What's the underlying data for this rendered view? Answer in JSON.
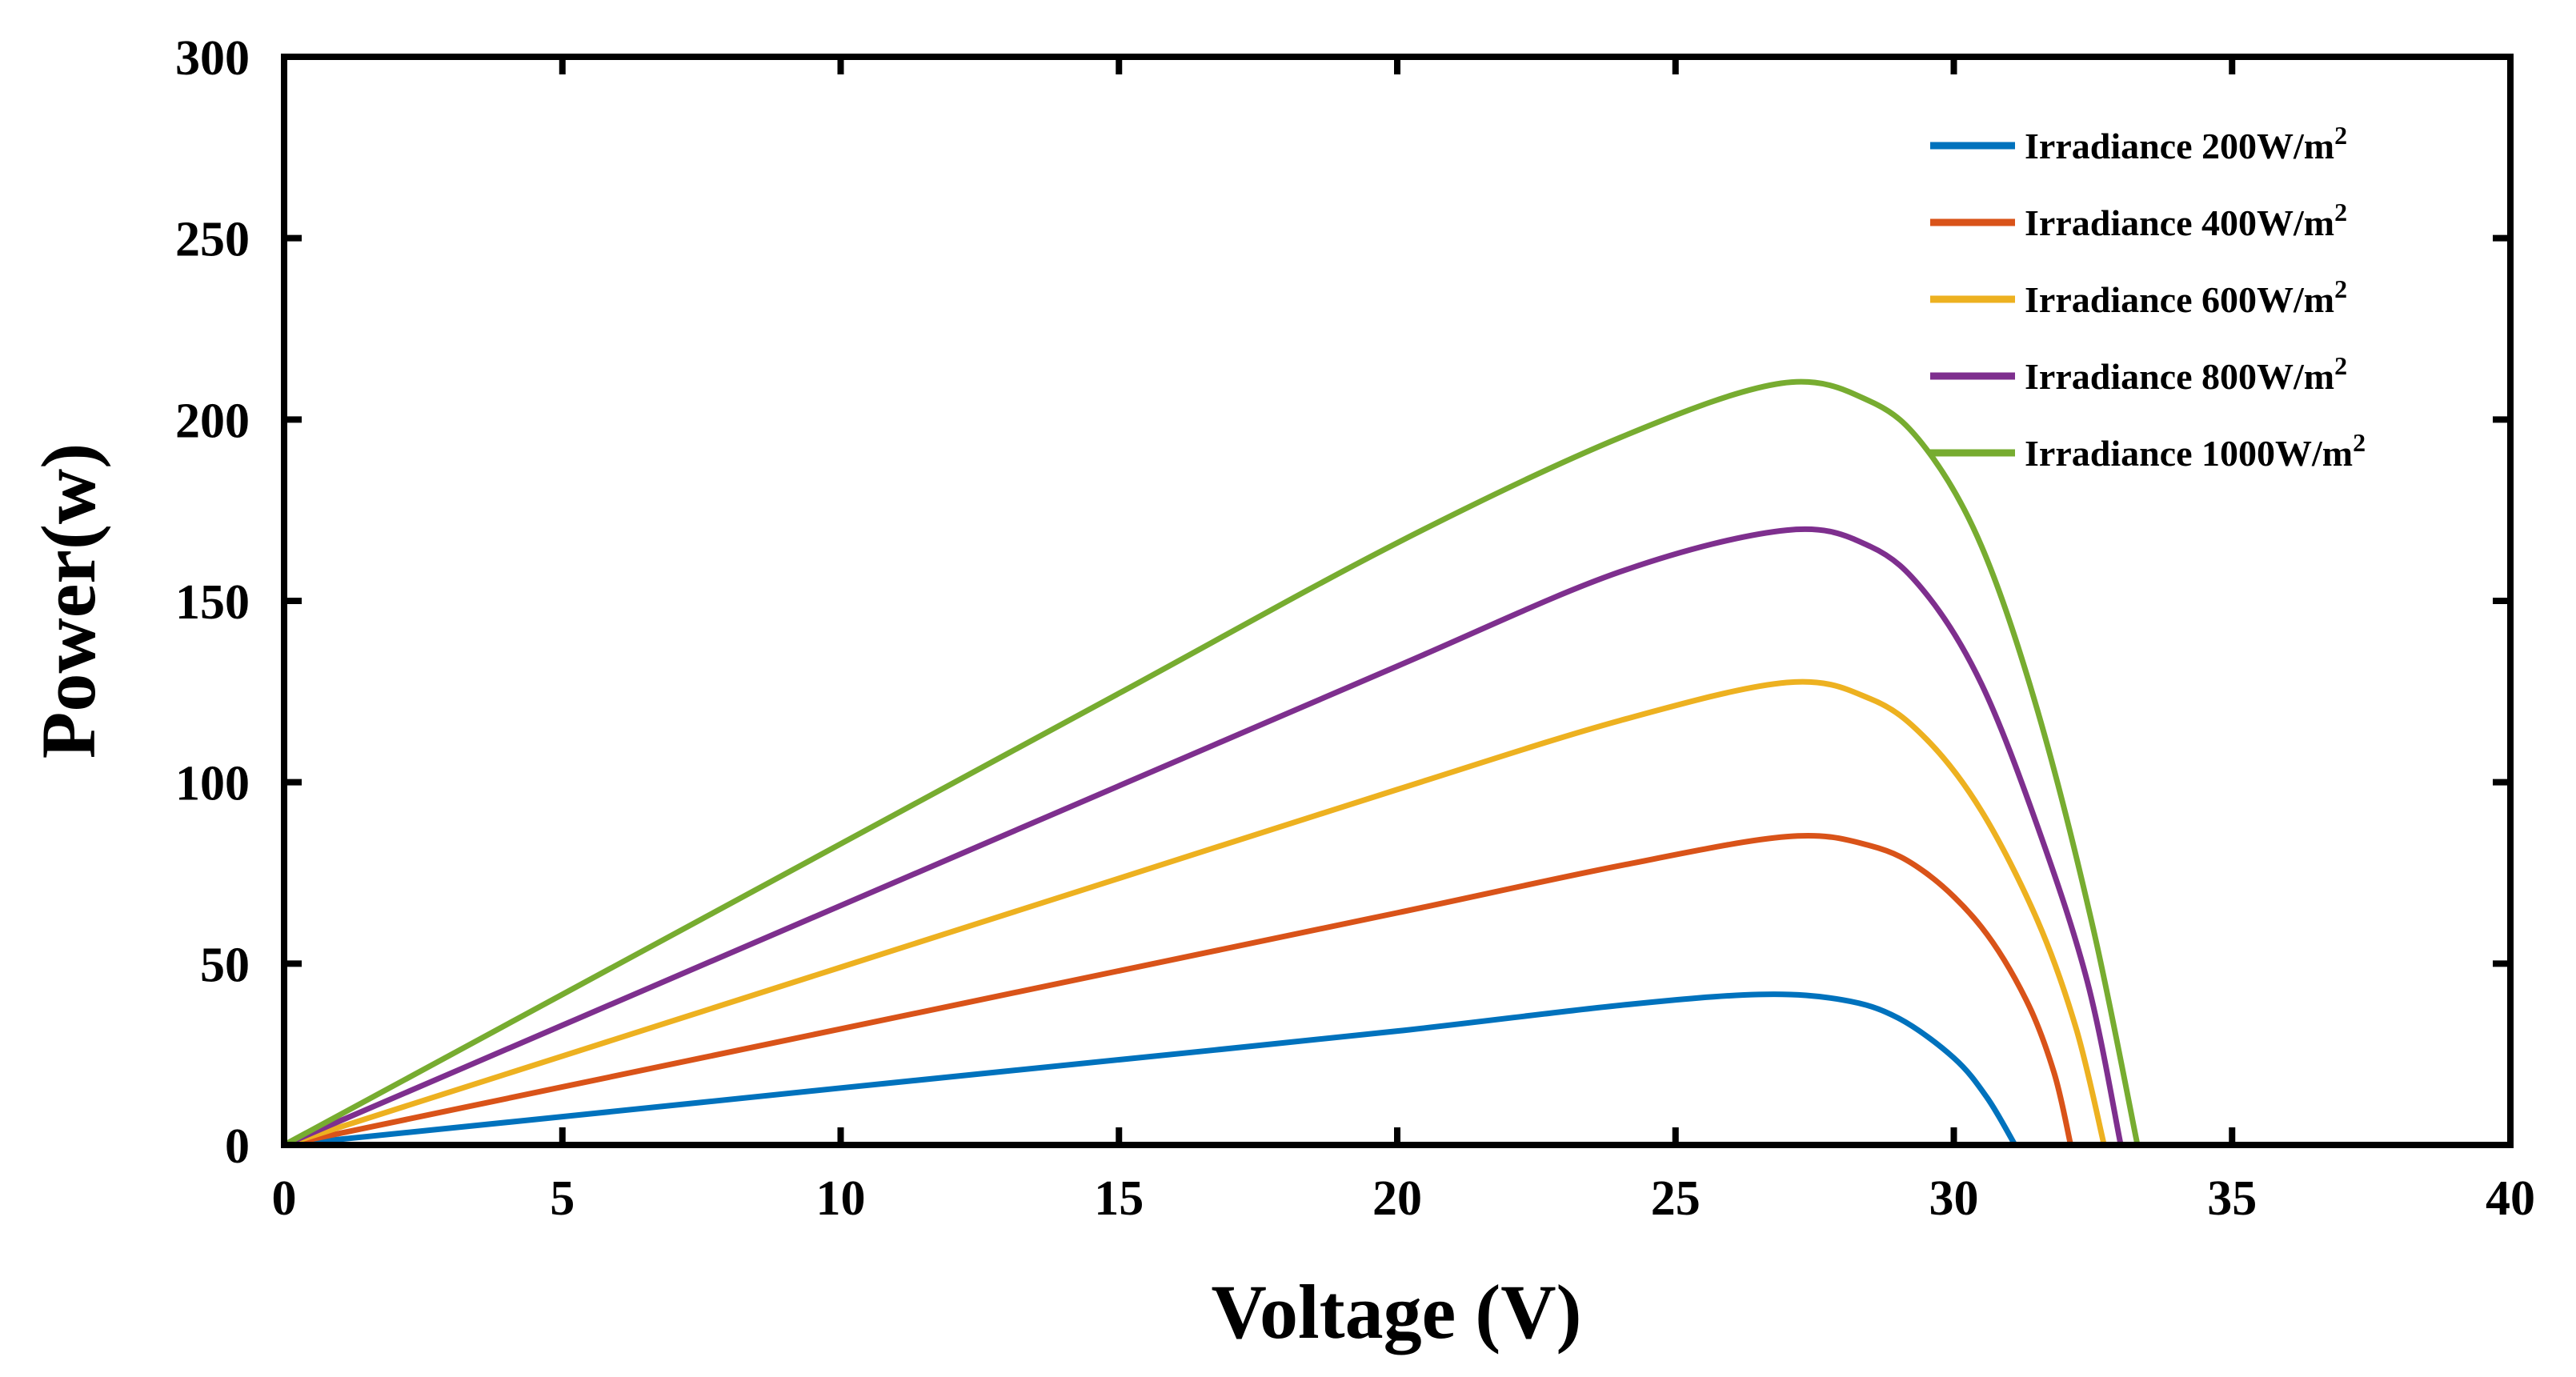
{
  "chart_data": {
    "type": "line",
    "title": "",
    "xlabel": "Voltage (V)",
    "ylabel": "Power(w)",
    "xlim": [
      0,
      40
    ],
    "ylim": [
      0,
      300
    ],
    "xticks": [
      0,
      5,
      10,
      15,
      20,
      25,
      30,
      35,
      40
    ],
    "yticks": [
      0,
      50,
      100,
      150,
      200,
      250,
      300
    ],
    "grid": false,
    "legend_position": "top-right",
    "series": [
      {
        "name": "Irradiance 200W/m²",
        "label_main": "Irradiance 200W/m",
        "label_sup": "2",
        "color": "#0072BD",
        "x": [
          0,
          5,
          10,
          15,
          20,
          24,
          26.5,
          28,
          29,
          30,
          30.6,
          31.1
        ],
        "y": [
          0,
          7.8,
          15.7,
          23.5,
          31.4,
          38.5,
          41.5,
          40,
          35,
          24,
          13,
          0
        ]
      },
      {
        "name": "Irradiance 400W/m²",
        "label_main": "Irradiance 400W/m",
        "label_sup": "2",
        "color": "#D95319",
        "x": [
          0,
          5,
          10,
          15,
          20,
          24,
          27,
          28.5,
          29.5,
          30.5,
          31.3,
          31.8,
          32.1
        ],
        "y": [
          0,
          16,
          32,
          48,
          64,
          77,
          85,
          82.5,
          75,
          60,
          40,
          20,
          0
        ]
      },
      {
        "name": "Irradiance 600W/m²",
        "label_main": "Irradiance 600W/m",
        "label_sup": "2",
        "color": "#EDB120",
        "x": [
          0,
          5,
          10,
          15,
          20,
          24,
          27,
          28.5,
          29.5,
          30.5,
          31.5,
          32.2,
          32.7
        ],
        "y": [
          0,
          24.5,
          49,
          73.5,
          98,
          117,
          127.5,
          123,
          112,
          92,
          62,
          32,
          0
        ]
      },
      {
        "name": "Irradiance 800W/m²",
        "label_main": "Irradiance 800W/m",
        "label_sup": "2",
        "color": "#7E2F8E",
        "x": [
          0,
          5,
          10,
          15,
          20,
          24,
          27,
          28.5,
          29.5,
          30.5,
          31.5,
          32.4,
          33.0
        ],
        "y": [
          0,
          33,
          66,
          99,
          132,
          158,
          169.5,
          165,
          152,
          127,
          88,
          45,
          0
        ]
      },
      {
        "name": "Irradiance 1000W/m²",
        "label_main": "Irradiance 1000W/m",
        "label_sup": "2",
        "color": "#77AC30",
        "x": [
          0,
          5,
          10,
          15,
          20,
          24,
          26.9,
          28.5,
          29.5,
          30.5,
          31.5,
          32.5,
          33.3
        ],
        "y": [
          0,
          41.5,
          83,
          124.5,
          166,
          195,
          210,
          205,
          192,
          165,
          120,
          60,
          0
        ]
      }
    ]
  }
}
